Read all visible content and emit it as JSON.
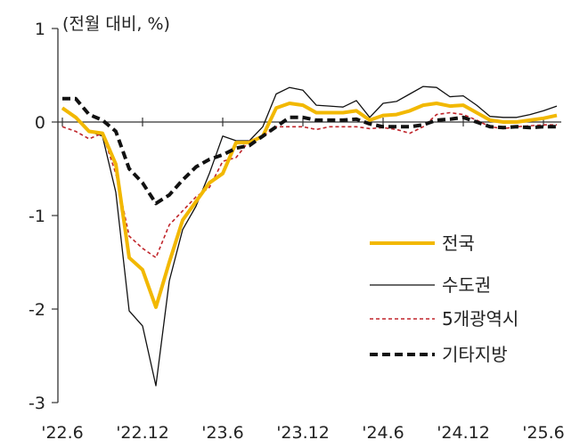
{
  "chart_data": {
    "type": "line",
    "unit_label": "(전월 대비, %)",
    "ylim": [
      -3,
      1
    ],
    "y_ticks": [
      1,
      0,
      -1,
      -2,
      -3
    ],
    "x_ticks": [
      "'22.6",
      "'22.12",
      "'23.6",
      "'23.12",
      "'24.6",
      "'24.12",
      "'25.6"
    ],
    "grid": false,
    "legend_position": "lower-right",
    "series": [
      {
        "name": "전국",
        "color": "#f2b800",
        "style": "solid-thick",
        "values": [
          0.15,
          0.05,
          -0.1,
          -0.12,
          -0.45,
          -1.45,
          -1.58,
          -1.98,
          -1.5,
          -1.05,
          -0.85,
          -0.65,
          -0.55,
          -0.22,
          -0.22,
          -0.15,
          0.15,
          0.2,
          0.18,
          0.1,
          0.1,
          0.1,
          0.12,
          0.02,
          0.07,
          0.08,
          0.12,
          0.18,
          0.2,
          0.17,
          0.18,
          0.1,
          0.02,
          0.0,
          0.0,
          0.02,
          0.04,
          0.07
        ]
      },
      {
        "name": "수도권",
        "color": "#111111",
        "style": "solid-thin",
        "values": [
          0.15,
          0.05,
          -0.1,
          -0.15,
          -0.75,
          -2.02,
          -2.18,
          -2.82,
          -1.7,
          -1.15,
          -0.9,
          -0.55,
          -0.15,
          -0.2,
          -0.2,
          -0.05,
          0.3,
          0.37,
          0.34,
          0.18,
          0.17,
          0.16,
          0.23,
          0.05,
          0.2,
          0.22,
          0.3,
          0.38,
          0.37,
          0.27,
          0.28,
          0.18,
          0.06,
          0.05,
          0.05,
          0.08,
          0.12,
          0.17
        ]
      },
      {
        "name": "5개광역시",
        "color": "#c0252b",
        "style": "dashed-thin",
        "values": [
          -0.05,
          -0.1,
          -0.18,
          -0.12,
          -0.55,
          -1.22,
          -1.35,
          -1.45,
          -1.1,
          -0.95,
          -0.8,
          -0.7,
          -0.42,
          -0.38,
          -0.2,
          -0.15,
          -0.05,
          -0.05,
          -0.05,
          -0.08,
          -0.05,
          -0.05,
          -0.05,
          -0.07,
          -0.06,
          -0.08,
          -0.12,
          -0.05,
          0.08,
          0.1,
          0.08,
          0.02,
          -0.05,
          -0.07,
          -0.05,
          -0.04,
          -0.03,
          -0.03
        ]
      },
      {
        "name": "기타지방",
        "color": "#111111",
        "style": "dashed-thick",
        "values": [
          0.25,
          0.25,
          0.08,
          0.02,
          -0.1,
          -0.5,
          -0.65,
          -0.87,
          -0.78,
          -0.62,
          -0.48,
          -0.4,
          -0.35,
          -0.28,
          -0.25,
          -0.15,
          -0.05,
          0.05,
          0.05,
          0.02,
          0.02,
          0.02,
          0.03,
          -0.02,
          -0.05,
          -0.05,
          -0.05,
          -0.03,
          0.02,
          0.03,
          0.05,
          0.0,
          -0.05,
          -0.06,
          -0.05,
          -0.06,
          -0.05,
          -0.05
        ]
      }
    ]
  }
}
